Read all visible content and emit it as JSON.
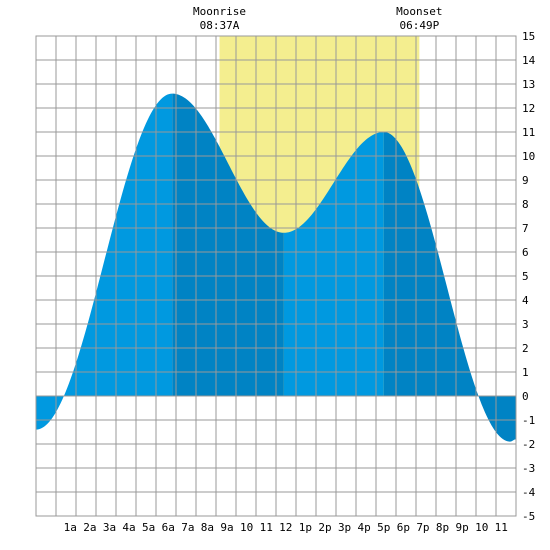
{
  "chart_data": {
    "type": "area",
    "xlabel": "",
    "ylabel": "",
    "ylim": [
      -5,
      15
    ],
    "xlim_hours": [
      -0.75,
      23.75
    ],
    "grid": true,
    "x_tick_labels": [
      "1a",
      "2a",
      "3a",
      "4a",
      "5a",
      "6a",
      "7a",
      "8a",
      "9a",
      "10",
      "11",
      "12",
      "1p",
      "2p",
      "3p",
      "4p",
      "5p",
      "6p",
      "7p",
      "8p",
      "9p",
      "10",
      "11"
    ],
    "y_ticks": [
      15,
      14,
      13,
      12,
      11,
      10,
      9,
      8,
      7,
      6,
      5,
      4,
      3,
      2,
      1,
      0,
      -1,
      -2,
      -3,
      -4,
      -5
    ],
    "moon": {
      "rise_label": "Moonrise",
      "rise_time": "08:37A",
      "rise_hour": 8.617,
      "set_label": "Moonset",
      "set_time": "06:49P",
      "set_hour": 18.817
    },
    "tide_extrema": [
      {
        "hour": -0.75,
        "height": -1.4
      },
      {
        "hour": 6.2,
        "height": 12.6
      },
      {
        "hour": 11.9,
        "height": 6.8
      },
      {
        "hour": 17.0,
        "height": 11.0
      },
      {
        "hour": 23.45,
        "height": -1.9
      },
      {
        "hour": 23.75,
        "height": -1.8
      }
    ],
    "shading_boundaries_hours": [
      6.2,
      11.9,
      17.0
    ],
    "colors": {
      "moon_window": "#f4ee8f",
      "tide_light": "#0099e0",
      "tide_dark": "#0083c4",
      "grid": "#999999",
      "background": "#ffffff"
    }
  }
}
